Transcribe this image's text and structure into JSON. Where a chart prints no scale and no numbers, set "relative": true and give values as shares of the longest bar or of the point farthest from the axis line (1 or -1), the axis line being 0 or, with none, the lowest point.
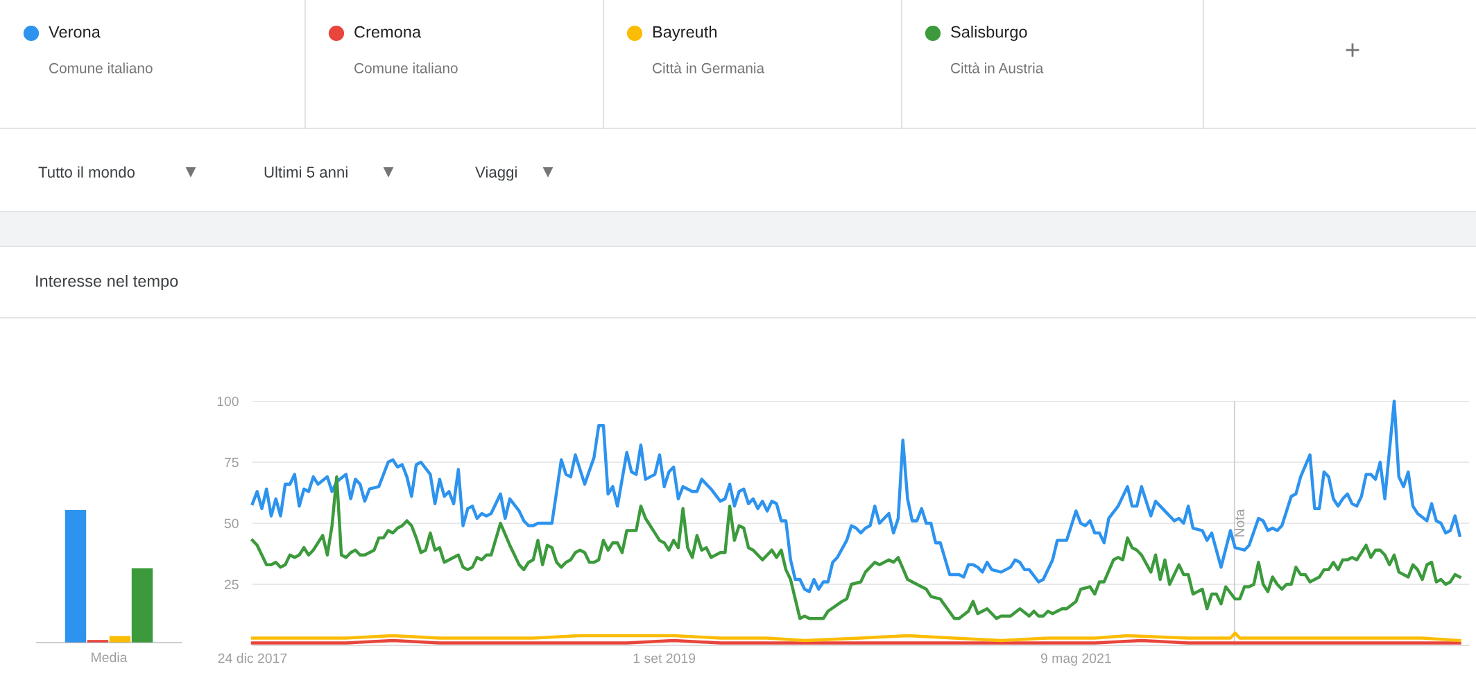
{
  "chart_data": [
    {
      "type": "other",
      "annotations": [
        "Comune italiano",
        "Comune italiano",
        "Città in Germania",
        "Città in Austria",
        "Tutto il mondo",
        "Ultimi 5 anni",
        "Viaggi",
        "+"
      ]
    },
    {
      "type": "bar",
      "relative": true,
      "categories": [
        "Media"
      ],
      "series": [
        {
          "color": "#2d93ee",
          "values": [
            1
          ]
        },
        {
          "color": "#e8453c",
          "values": [
            0.02
          ]
        },
        {
          "color": "#fbbc05",
          "values": [
            0.05
          ]
        },
        {
          "color": "#3c9a3c",
          "values": [
            0.56
          ]
        }
      ]
    },
    {
      "type": "line",
      "title": "Interesse nel tempo",
      "legend": "top",
      "grid": "y",
      "ylim": [
        0,
        100
      ],
      "yticks": [
        25,
        50,
        75,
        100
      ],
      "xlim": [
        "2017-12-24",
        "2022-12-18"
      ],
      "xticks": [
        {
          "value": "2017-12-24",
          "label": "24 dic 2017"
        },
        {
          "value": "2019-09-01",
          "label": "1 set 2019"
        },
        {
          "value": "2021-05-09",
          "label": "9 mag 2021"
        }
      ],
      "ref_lines": [
        {
          "axis": "x",
          "value": "2022-01-01",
          "label": "Nota",
          "color": "#cccccc"
        }
      ],
      "series": [
        {
          "name": "Verona",
          "color": "#2d93ee",
          "x": [
            "2017-12-24",
            "2017-12-31",
            "2018-01-07",
            "2018-01-14",
            "2018-01-21",
            "2018-01-28",
            "2018-02-04",
            "2018-02-11",
            "2018-02-18",
            "2018-02-25",
            "2018-03-04",
            "2018-03-11",
            "2018-03-18",
            "2018-03-25",
            "2018-04-01",
            "2018-04-15",
            "2018-04-22",
            "2018-04-29",
            "2018-05-13",
            "2018-05-20",
            "2018-05-27",
            "2018-06-03",
            "2018-06-10",
            "2018-06-17",
            "2018-07-01",
            "2018-07-15",
            "2018-07-22",
            "2018-07-29",
            "2018-08-05",
            "2018-08-12",
            "2018-08-19",
            "2018-08-26",
            "2018-09-02",
            "2018-09-16",
            "2018-09-23",
            "2018-09-30",
            "2018-10-07",
            "2018-10-14",
            "2018-10-21",
            "2018-10-28",
            "2018-11-04",
            "2018-11-11",
            "2018-11-18",
            "2018-11-25",
            "2018-12-02",
            "2018-12-09",
            "2018-12-16",
            "2018-12-30",
            "2019-01-06",
            "2019-01-13",
            "2019-01-27",
            "2019-02-03",
            "2019-02-10",
            "2019-02-17",
            "2019-02-24",
            "2019-03-17",
            "2019-03-31",
            "2019-04-07",
            "2019-04-14",
            "2019-04-21",
            "2019-05-05",
            "2019-05-19",
            "2019-05-26",
            "2019-06-02",
            "2019-06-09",
            "2019-06-16",
            "2019-06-23",
            "2019-07-07",
            "2019-07-14",
            "2019-07-21",
            "2019-07-28",
            "2019-08-04",
            "2019-08-11",
            "2019-08-18",
            "2019-08-25",
            "2019-09-01",
            "2019-09-08",
            "2019-09-15",
            "2019-09-22",
            "2019-09-29",
            "2019-10-13",
            "2019-10-20",
            "2019-10-27",
            "2019-11-10",
            "2019-11-24",
            "2019-12-01",
            "2019-12-08",
            "2019-12-15",
            "2019-12-22",
            "2019-12-29",
            "2020-01-05",
            "2020-01-12",
            "2020-01-19",
            "2020-01-26",
            "2020-02-02",
            "2020-02-09",
            "2020-02-16",
            "2020-02-23",
            "2020-03-01",
            "2020-03-08",
            "2020-03-15",
            "2020-03-22",
            "2020-03-29",
            "2020-04-05",
            "2020-04-12",
            "2020-04-19",
            "2020-04-26",
            "2020-05-03",
            "2020-05-10",
            "2020-05-17",
            "2020-05-31",
            "2020-06-07",
            "2020-06-14",
            "2020-06-21",
            "2020-06-28",
            "2020-07-05",
            "2020-07-12",
            "2020-07-19",
            "2020-08-02",
            "2020-08-09",
            "2020-08-16",
            "2020-08-23",
            "2020-08-30",
            "2020-09-06",
            "2020-09-13",
            "2020-09-20",
            "2020-09-27",
            "2020-10-04",
            "2020-10-11",
            "2020-10-18",
            "2020-11-01",
            "2020-11-15",
            "2020-11-22",
            "2020-11-29",
            "2020-12-06",
            "2020-12-13",
            "2020-12-20",
            "2020-12-27",
            "2021-01-03",
            "2021-01-17",
            "2021-01-24",
            "2021-01-31",
            "2021-02-07",
            "2021-02-14",
            "2021-02-21",
            "2021-02-28",
            "2021-03-14",
            "2021-03-21",
            "2021-04-04",
            "2021-04-11",
            "2021-04-25",
            "2021-05-09",
            "2021-05-16",
            "2021-05-23",
            "2021-05-30",
            "2021-06-06",
            "2021-06-13",
            "2021-06-20",
            "2021-06-27",
            "2021-07-11",
            "2021-07-25",
            "2021-08-01",
            "2021-08-08",
            "2021-08-15",
            "2021-08-29",
            "2021-09-05",
            "2021-09-12",
            "2021-09-19",
            "2021-10-03",
            "2021-10-10",
            "2021-10-17",
            "2021-10-24",
            "2021-10-31",
            "2021-11-14",
            "2021-11-21",
            "2021-11-28",
            "2021-12-12",
            "2021-12-26",
            "2022-01-02",
            "2022-01-16",
            "2022-01-23",
            "2022-02-06",
            "2022-02-13",
            "2022-02-20",
            "2022-02-27",
            "2022-03-06",
            "2022-03-13",
            "2022-03-27",
            "2022-04-03",
            "2022-04-10",
            "2022-04-24",
            "2022-05-01",
            "2022-05-08",
            "2022-05-15",
            "2022-05-22",
            "2022-05-29",
            "2022-06-05",
            "2022-06-12",
            "2022-06-19",
            "2022-06-26",
            "2022-07-03",
            "2022-07-10",
            "2022-07-17",
            "2022-07-24",
            "2022-07-31",
            "2022-08-07",
            "2022-08-14",
            "2022-08-28",
            "2022-09-04",
            "2022-09-11",
            "2022-09-18",
            "2022-09-25",
            "2022-10-02",
            "2022-10-16",
            "2022-10-23",
            "2022-10-30",
            "2022-11-06",
            "2022-11-13",
            "2022-11-20",
            "2022-11-27",
            "2022-12-04"
          ],
          "values": [
            58,
            63,
            56,
            64,
            53,
            60,
            53,
            66,
            66,
            70,
            57,
            64,
            63,
            69,
            66,
            69,
            63,
            67,
            70,
            60,
            68,
            66,
            59,
            64,
            65,
            75,
            76,
            73,
            74,
            69,
            61,
            74,
            75,
            70,
            58,
            68,
            61,
            63,
            58,
            72,
            49,
            56,
            57,
            52,
            54,
            53,
            54,
            62,
            52,
            60,
            55,
            51,
            49,
            49,
            50,
            50,
            76,
            70,
            69,
            78,
            66,
            77,
            90,
            90,
            62,
            65,
            57,
            79,
            71,
            70,
            82,
            68,
            69,
            70,
            78,
            65,
            71,
            73,
            60,
            65,
            63,
            63,
            68,
            64,
            59,
            60,
            66,
            57,
            63,
            64,
            58,
            60,
            56,
            59,
            55,
            59,
            58,
            51,
            51,
            35,
            27,
            27,
            23,
            22,
            27,
            23,
            26,
            26,
            34,
            36,
            43,
            49,
            48,
            46,
            48,
            49,
            57,
            50,
            54,
            46,
            52,
            84,
            60,
            51,
            51,
            56,
            50,
            50,
            42,
            42,
            29,
            29,
            28,
            33,
            33,
            32,
            30,
            34,
            31,
            30,
            31,
            32,
            35,
            34,
            31,
            31,
            26,
            27,
            35,
            43,
            43,
            55,
            50,
            49,
            51,
            46,
            46,
            42,
            52,
            57,
            65,
            57,
            57,
            65,
            53,
            59,
            57,
            55,
            51,
            52,
            50,
            57,
            48,
            47,
            43,
            46,
            32,
            47,
            40,
            39,
            41,
            52,
            51,
            47,
            48,
            47,
            49,
            61,
            62,
            69,
            78,
            56,
            56,
            71,
            69,
            60,
            57,
            60,
            62,
            58,
            57,
            61,
            70,
            70,
            68,
            75,
            60,
            100,
            69,
            65,
            71,
            57,
            54,
            51,
            58,
            51,
            50,
            46,
            47,
            53,
            45
          ]
        },
        {
          "name": "Cremona",
          "color": "#e8453c",
          "x": [
            "2017-12-24",
            "2018-05-13",
            "2018-07-22",
            "2018-09-30",
            "2019-02-17",
            "2019-07-07",
            "2019-09-15",
            "2019-11-24",
            "2020-04-12",
            "2020-08-30",
            "2021-01-17",
            "2021-06-06",
            "2021-08-15",
            "2021-10-24",
            "2022-03-13",
            "2022-07-31",
            "2022-12-04"
          ],
          "values": [
            1,
            1,
            2,
            1,
            1,
            1,
            2,
            1,
            1,
            1,
            1,
            1,
            2,
            1,
            1,
            1,
            1
          ]
        },
        {
          "name": "Bayreuth",
          "color": "#fbbc05",
          "x": [
            "2017-12-24",
            "2018-03-04",
            "2018-05-13",
            "2018-07-22",
            "2018-09-30",
            "2018-12-09",
            "2019-02-17",
            "2019-04-28",
            "2019-07-07",
            "2019-09-15",
            "2019-11-24",
            "2020-02-02",
            "2020-03-29",
            "2020-06-21",
            "2020-08-30",
            "2020-11-08",
            "2021-01-17",
            "2021-03-28",
            "2021-06-06",
            "2021-07-25",
            "2021-10-24",
            "2021-12-26",
            "2022-01-02",
            "2022-01-09",
            "2022-03-13",
            "2022-05-22",
            "2022-07-31",
            "2022-10-09",
            "2022-12-04"
          ],
          "values": [
            3,
            3,
            3,
            4,
            3,
            3,
            3,
            4,
            4,
            4,
            3,
            3,
            2,
            3,
            4,
            3,
            2,
            3,
            3,
            4,
            3,
            3,
            5,
            3,
            3,
            3,
            3,
            3,
            2
          ]
        },
        {
          "name": "Salisburgo",
          "color": "#3c9a3c",
          "x": [
            "2017-12-24",
            "2017-12-31",
            "2018-01-07",
            "2018-01-14",
            "2018-01-21",
            "2018-01-28",
            "2018-02-04",
            "2018-02-11",
            "2018-02-18",
            "2018-02-25",
            "2018-03-04",
            "2018-03-11",
            "2018-03-18",
            "2018-03-25",
            "2018-04-01",
            "2018-04-08",
            "2018-04-15",
            "2018-04-22",
            "2018-04-29",
            "2018-05-06",
            "2018-05-13",
            "2018-05-20",
            "2018-05-27",
            "2018-06-03",
            "2018-06-10",
            "2018-06-17",
            "2018-06-24",
            "2018-07-01",
            "2018-07-08",
            "2018-07-15",
            "2018-07-22",
            "2018-07-29",
            "2018-08-05",
            "2018-08-12",
            "2018-08-19",
            "2018-08-26",
            "2018-09-02",
            "2018-09-09",
            "2018-09-16",
            "2018-09-23",
            "2018-09-30",
            "2018-10-07",
            "2018-10-14",
            "2018-10-21",
            "2018-10-28",
            "2018-11-04",
            "2018-11-11",
            "2018-11-18",
            "2018-11-25",
            "2018-12-02",
            "2018-12-09",
            "2018-12-16",
            "2018-12-30",
            "2019-01-13",
            "2019-01-20",
            "2019-01-27",
            "2019-02-03",
            "2019-02-10",
            "2019-02-17",
            "2019-02-24",
            "2019-03-03",
            "2019-03-10",
            "2019-03-17",
            "2019-03-24",
            "2019-03-31",
            "2019-04-07",
            "2019-04-14",
            "2019-04-21",
            "2019-04-28",
            "2019-05-05",
            "2019-05-12",
            "2019-05-19",
            "2019-05-26",
            "2019-06-02",
            "2019-06-09",
            "2019-06-16",
            "2019-06-23",
            "2019-06-30",
            "2019-07-07",
            "2019-07-21",
            "2019-07-28",
            "2019-08-04",
            "2019-08-11",
            "2019-08-25",
            "2019-09-01",
            "2019-09-08",
            "2019-09-15",
            "2019-09-22",
            "2019-09-29",
            "2019-10-06",
            "2019-10-13",
            "2019-10-20",
            "2019-10-27",
            "2019-11-03",
            "2019-11-10",
            "2019-11-24",
            "2019-12-01",
            "2019-12-08",
            "2019-12-15",
            "2019-12-22",
            "2019-12-29",
            "2020-01-05",
            "2020-01-12",
            "2020-01-26",
            "2020-02-09",
            "2020-02-16",
            "2020-02-23",
            "2020-03-01",
            "2020-03-08",
            "2020-03-22",
            "2020-03-29",
            "2020-04-05",
            "2020-04-26",
            "2020-05-03",
            "2020-05-24",
            "2020-05-31",
            "2020-06-07",
            "2020-06-21",
            "2020-06-28",
            "2020-07-12",
            "2020-07-19",
            "2020-08-02",
            "2020-08-09",
            "2020-08-16",
            "2020-08-30",
            "2020-09-27",
            "2020-10-04",
            "2020-10-18",
            "2020-11-08",
            "2020-11-15",
            "2020-11-29",
            "2020-12-06",
            "2020-12-13",
            "2020-12-27",
            "2021-01-10",
            "2021-01-17",
            "2021-01-31",
            "2021-02-14",
            "2021-02-28",
            "2021-03-07",
            "2021-03-14",
            "2021-03-21",
            "2021-03-28",
            "2021-04-04",
            "2021-04-18",
            "2021-04-25",
            "2021-05-09",
            "2021-05-16",
            "2021-05-30",
            "2021-06-06",
            "2021-06-13",
            "2021-06-20",
            "2021-07-04",
            "2021-07-11",
            "2021-07-18",
            "2021-07-25",
            "2021-08-01",
            "2021-08-08",
            "2021-08-15",
            "2021-08-29",
            "2021-09-05",
            "2021-09-12",
            "2021-09-19",
            "2021-09-26",
            "2021-10-10",
            "2021-10-17",
            "2021-10-24",
            "2021-10-31",
            "2021-11-14",
            "2021-11-21",
            "2021-11-28",
            "2021-12-05",
            "2021-12-12",
            "2021-12-19",
            "2022-01-02",
            "2022-01-09",
            "2022-01-16",
            "2022-01-23",
            "2022-01-30",
            "2022-02-06",
            "2022-02-13",
            "2022-02-20",
            "2022-02-27",
            "2022-03-06",
            "2022-03-13",
            "2022-03-20",
            "2022-03-27",
            "2022-04-03",
            "2022-04-10",
            "2022-04-17",
            "2022-04-24",
            "2022-05-08",
            "2022-05-15",
            "2022-05-22",
            "2022-05-29",
            "2022-06-05",
            "2022-06-12",
            "2022-06-19",
            "2022-06-26",
            "2022-07-03",
            "2022-07-17",
            "2022-07-24",
            "2022-07-31",
            "2022-08-07",
            "2022-08-14",
            "2022-08-21",
            "2022-08-28",
            "2022-09-04",
            "2022-09-18",
            "2022-09-25",
            "2022-10-02",
            "2022-10-09",
            "2022-10-16",
            "2022-10-23",
            "2022-10-30",
            "2022-11-06",
            "2022-11-13",
            "2022-11-20",
            "2022-11-27",
            "2022-12-04"
          ],
          "values": [
            43,
            41,
            37,
            33,
            33,
            34,
            32,
            33,
            37,
            36,
            37,
            40,
            37,
            39,
            42,
            45,
            37,
            49,
            69,
            37,
            36,
            38,
            39,
            37,
            37,
            38,
            39,
            44,
            44,
            47,
            46,
            48,
            49,
            51,
            49,
            44,
            38,
            39,
            46,
            39,
            40,
            34,
            35,
            36,
            37,
            32,
            31,
            32,
            36,
            35,
            37,
            37,
            50,
            41,
            37,
            33,
            31,
            34,
            35,
            43,
            33,
            41,
            40,
            34,
            32,
            34,
            35,
            38,
            39,
            38,
            34,
            34,
            35,
            43,
            39,
            42,
            42,
            38,
            47,
            47,
            57,
            52,
            49,
            43,
            42,
            39,
            43,
            40,
            56,
            40,
            36,
            45,
            39,
            40,
            36,
            38,
            38,
            57,
            43,
            49,
            48,
            40,
            39,
            35,
            39,
            36,
            39,
            31,
            27,
            11,
            12,
            11,
            11,
            14,
            18,
            19,
            25,
            26,
            30,
            34,
            33,
            35,
            34,
            36,
            27,
            23,
            20,
            19,
            11,
            11,
            14,
            18,
            13,
            15,
            11,
            12,
            12,
            15,
            12,
            14,
            12,
            12,
            14,
            13,
            15,
            15,
            18,
            23,
            24,
            21,
            26,
            26,
            35,
            36,
            35,
            44,
            40,
            39,
            37,
            30,
            37,
            27,
            35,
            25,
            33,
            29,
            29,
            21,
            23,
            15,
            21,
            21,
            17,
            24,
            19,
            19,
            24,
            24,
            25,
            34,
            25,
            22,
            28,
            25,
            23,
            25,
            25,
            32,
            29,
            29,
            26,
            28,
            31,
            31,
            34,
            31,
            35,
            35,
            36,
            35,
            41,
            36,
            39,
            39,
            37,
            33,
            37,
            30,
            28,
            33,
            31,
            27,
            33,
            34,
            26,
            27,
            25,
            26,
            29,
            28
          ]
        }
      ]
    }
  ]
}
